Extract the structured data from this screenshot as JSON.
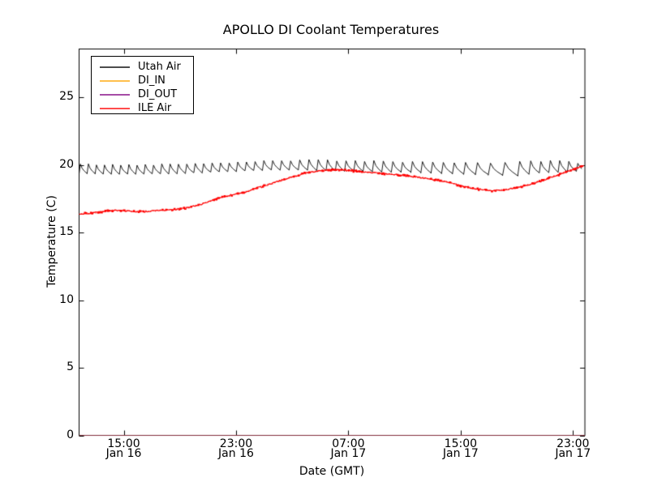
{
  "chart_data": {
    "type": "line",
    "title": "APOLLO DI Coolant Temperatures",
    "xlabel": "Date (GMT)",
    "ylabel": "Temperature (C)",
    "grid": false,
    "legend_position": "upper-left",
    "x_axis_unit": "hours since Jan 16 00:00 GMT",
    "xlim": [
      11.82,
      47.85
    ],
    "ylim": [
      0,
      28.6
    ],
    "x_ticks": [
      {
        "value": 15,
        "line1": "15:00",
        "line2": "Jan 16"
      },
      {
        "value": 23,
        "line1": "23:00",
        "line2": "Jan 16"
      },
      {
        "value": 31,
        "line1": "07:00",
        "line2": "Jan 17"
      },
      {
        "value": 39,
        "line1": "15:00",
        "line2": "Jan 17"
      },
      {
        "value": 47,
        "line1": "23:00",
        "line2": "Jan 17"
      }
    ],
    "y_ticks": [
      0,
      5,
      10,
      15,
      20,
      25
    ],
    "series": [
      {
        "name": "Utah Air",
        "color": "#000000",
        "style": "sawtooth",
        "envelope": [
          [
            11.82,
            20.05,
            19.35
          ],
          [
            14,
            20.0,
            19.3
          ],
          [
            16,
            20.0,
            19.32
          ],
          [
            18,
            20.05,
            19.35
          ],
          [
            20,
            20.1,
            19.42
          ],
          [
            21.5,
            20.15,
            19.48
          ],
          [
            23,
            20.2,
            19.55
          ],
          [
            24.5,
            20.28,
            19.6
          ],
          [
            26,
            20.32,
            19.63
          ],
          [
            28,
            20.35,
            19.6
          ],
          [
            30,
            20.32,
            19.55
          ],
          [
            31.5,
            20.3,
            19.5
          ],
          [
            33,
            20.27,
            19.47
          ],
          [
            34.5,
            20.22,
            19.45
          ],
          [
            36,
            20.25,
            19.4
          ],
          [
            37.5,
            20.2,
            19.35
          ],
          [
            39,
            20.15,
            19.3
          ],
          [
            40.5,
            20.1,
            19.25
          ],
          [
            42,
            20.2,
            19.2
          ],
          [
            43.5,
            20.25,
            19.35
          ],
          [
            45,
            20.3,
            19.45
          ],
          [
            46.5,
            20.25,
            19.5
          ],
          [
            47.85,
            20.05,
            19.55
          ]
        ],
        "period_hours": [
          [
            11.82,
            0.57
          ],
          [
            20,
            0.6
          ],
          [
            24,
            0.62
          ],
          [
            28,
            0.66
          ],
          [
            32,
            0.66
          ],
          [
            36,
            0.72
          ],
          [
            39,
            0.82
          ],
          [
            40.5,
            0.95
          ],
          [
            41.8,
            1.15
          ],
          [
            43,
            0.8
          ],
          [
            44.5,
            0.68
          ],
          [
            47.85,
            0.62
          ]
        ]
      },
      {
        "name": "DI_IN",
        "color": "#ffa500",
        "style": "flat",
        "value": 0
      },
      {
        "name": "DI_OUT",
        "color": "#800080",
        "style": "flat",
        "value": 0
      },
      {
        "name": "ILE Air",
        "color": "#ff0000",
        "style": "noisy-line",
        "noise": 0.05,
        "points": [
          [
            11.82,
            16.38
          ],
          [
            12.5,
            16.42
          ],
          [
            13.2,
            16.5
          ],
          [
            14.0,
            16.6
          ],
          [
            14.8,
            16.63
          ],
          [
            15.6,
            16.57
          ],
          [
            16.4,
            16.55
          ],
          [
            17.2,
            16.6
          ],
          [
            18.0,
            16.65
          ],
          [
            18.8,
            16.72
          ],
          [
            19.6,
            16.85
          ],
          [
            20.4,
            17.05
          ],
          [
            21.2,
            17.35
          ],
          [
            22.0,
            17.6
          ],
          [
            22.7,
            17.78
          ],
          [
            23.4,
            17.9
          ],
          [
            24.1,
            18.15
          ],
          [
            24.8,
            18.4
          ],
          [
            25.5,
            18.6
          ],
          [
            26.2,
            18.85
          ],
          [
            27.0,
            19.1
          ],
          [
            27.8,
            19.35
          ],
          [
            28.6,
            19.5
          ],
          [
            29.4,
            19.62
          ],
          [
            30.2,
            19.63
          ],
          [
            31.0,
            19.58
          ],
          [
            31.8,
            19.5
          ],
          [
            32.6,
            19.43
          ],
          [
            33.4,
            19.36
          ],
          [
            34.2,
            19.3
          ],
          [
            35.0,
            19.2
          ],
          [
            35.8,
            19.1
          ],
          [
            36.6,
            18.98
          ],
          [
            37.4,
            18.85
          ],
          [
            38.0,
            18.75
          ],
          [
            38.5,
            18.6
          ],
          [
            39.2,
            18.4
          ],
          [
            39.9,
            18.25
          ],
          [
            40.6,
            18.15
          ],
          [
            41.3,
            18.1
          ],
          [
            42.0,
            18.15
          ],
          [
            42.7,
            18.25
          ],
          [
            43.4,
            18.4
          ],
          [
            44.1,
            18.6
          ],
          [
            44.8,
            18.85
          ],
          [
            45.5,
            19.1
          ],
          [
            46.2,
            19.35
          ],
          [
            46.9,
            19.6
          ],
          [
            47.5,
            19.85
          ],
          [
            47.85,
            19.95
          ]
        ]
      }
    ]
  }
}
